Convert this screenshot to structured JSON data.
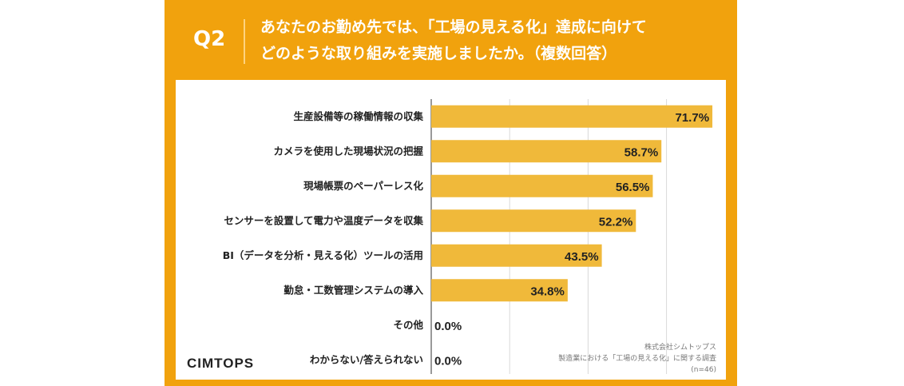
{
  "header": {
    "question_no": "Q2",
    "title_line1": "あなたのお勤め先では、「工場の見える化」達成に向けて",
    "title_line2": "どのような取り組みを実施しましたか。（複数回答）"
  },
  "footer": {
    "brand": "CIMTOPS",
    "source_line1": "株式会社シムトップス",
    "source_line2": "製造業における「工場の見える化」に関する調査",
    "source_line3": "(n=46)"
  },
  "colors": {
    "frame": "#f1a20d",
    "bar": "#f0b93a",
    "grid": "#d9d9d9"
  },
  "chart_data": {
    "type": "bar",
    "orientation": "horizontal",
    "categories": [
      "生産設備等の稼働情報の収集",
      "カメラを使用した現場状況の把握",
      "現場帳票のペーパーレス化",
      "センサーを設置して電力や温度データを収集",
      "BI（データを分析・見える化）ツールの活用",
      "勤怠・工数管理システムの導入",
      "その他",
      "わからない/答えられない"
    ],
    "values": [
      71.7,
      58.7,
      56.5,
      52.2,
      43.5,
      34.8,
      0.0,
      0.0
    ],
    "value_labels": [
      "71.7%",
      "58.7%",
      "56.5%",
      "52.2%",
      "43.5%",
      "34.8%",
      "0.0%",
      "0.0%"
    ],
    "xlim": [
      0,
      100
    ],
    "grid": true
  }
}
